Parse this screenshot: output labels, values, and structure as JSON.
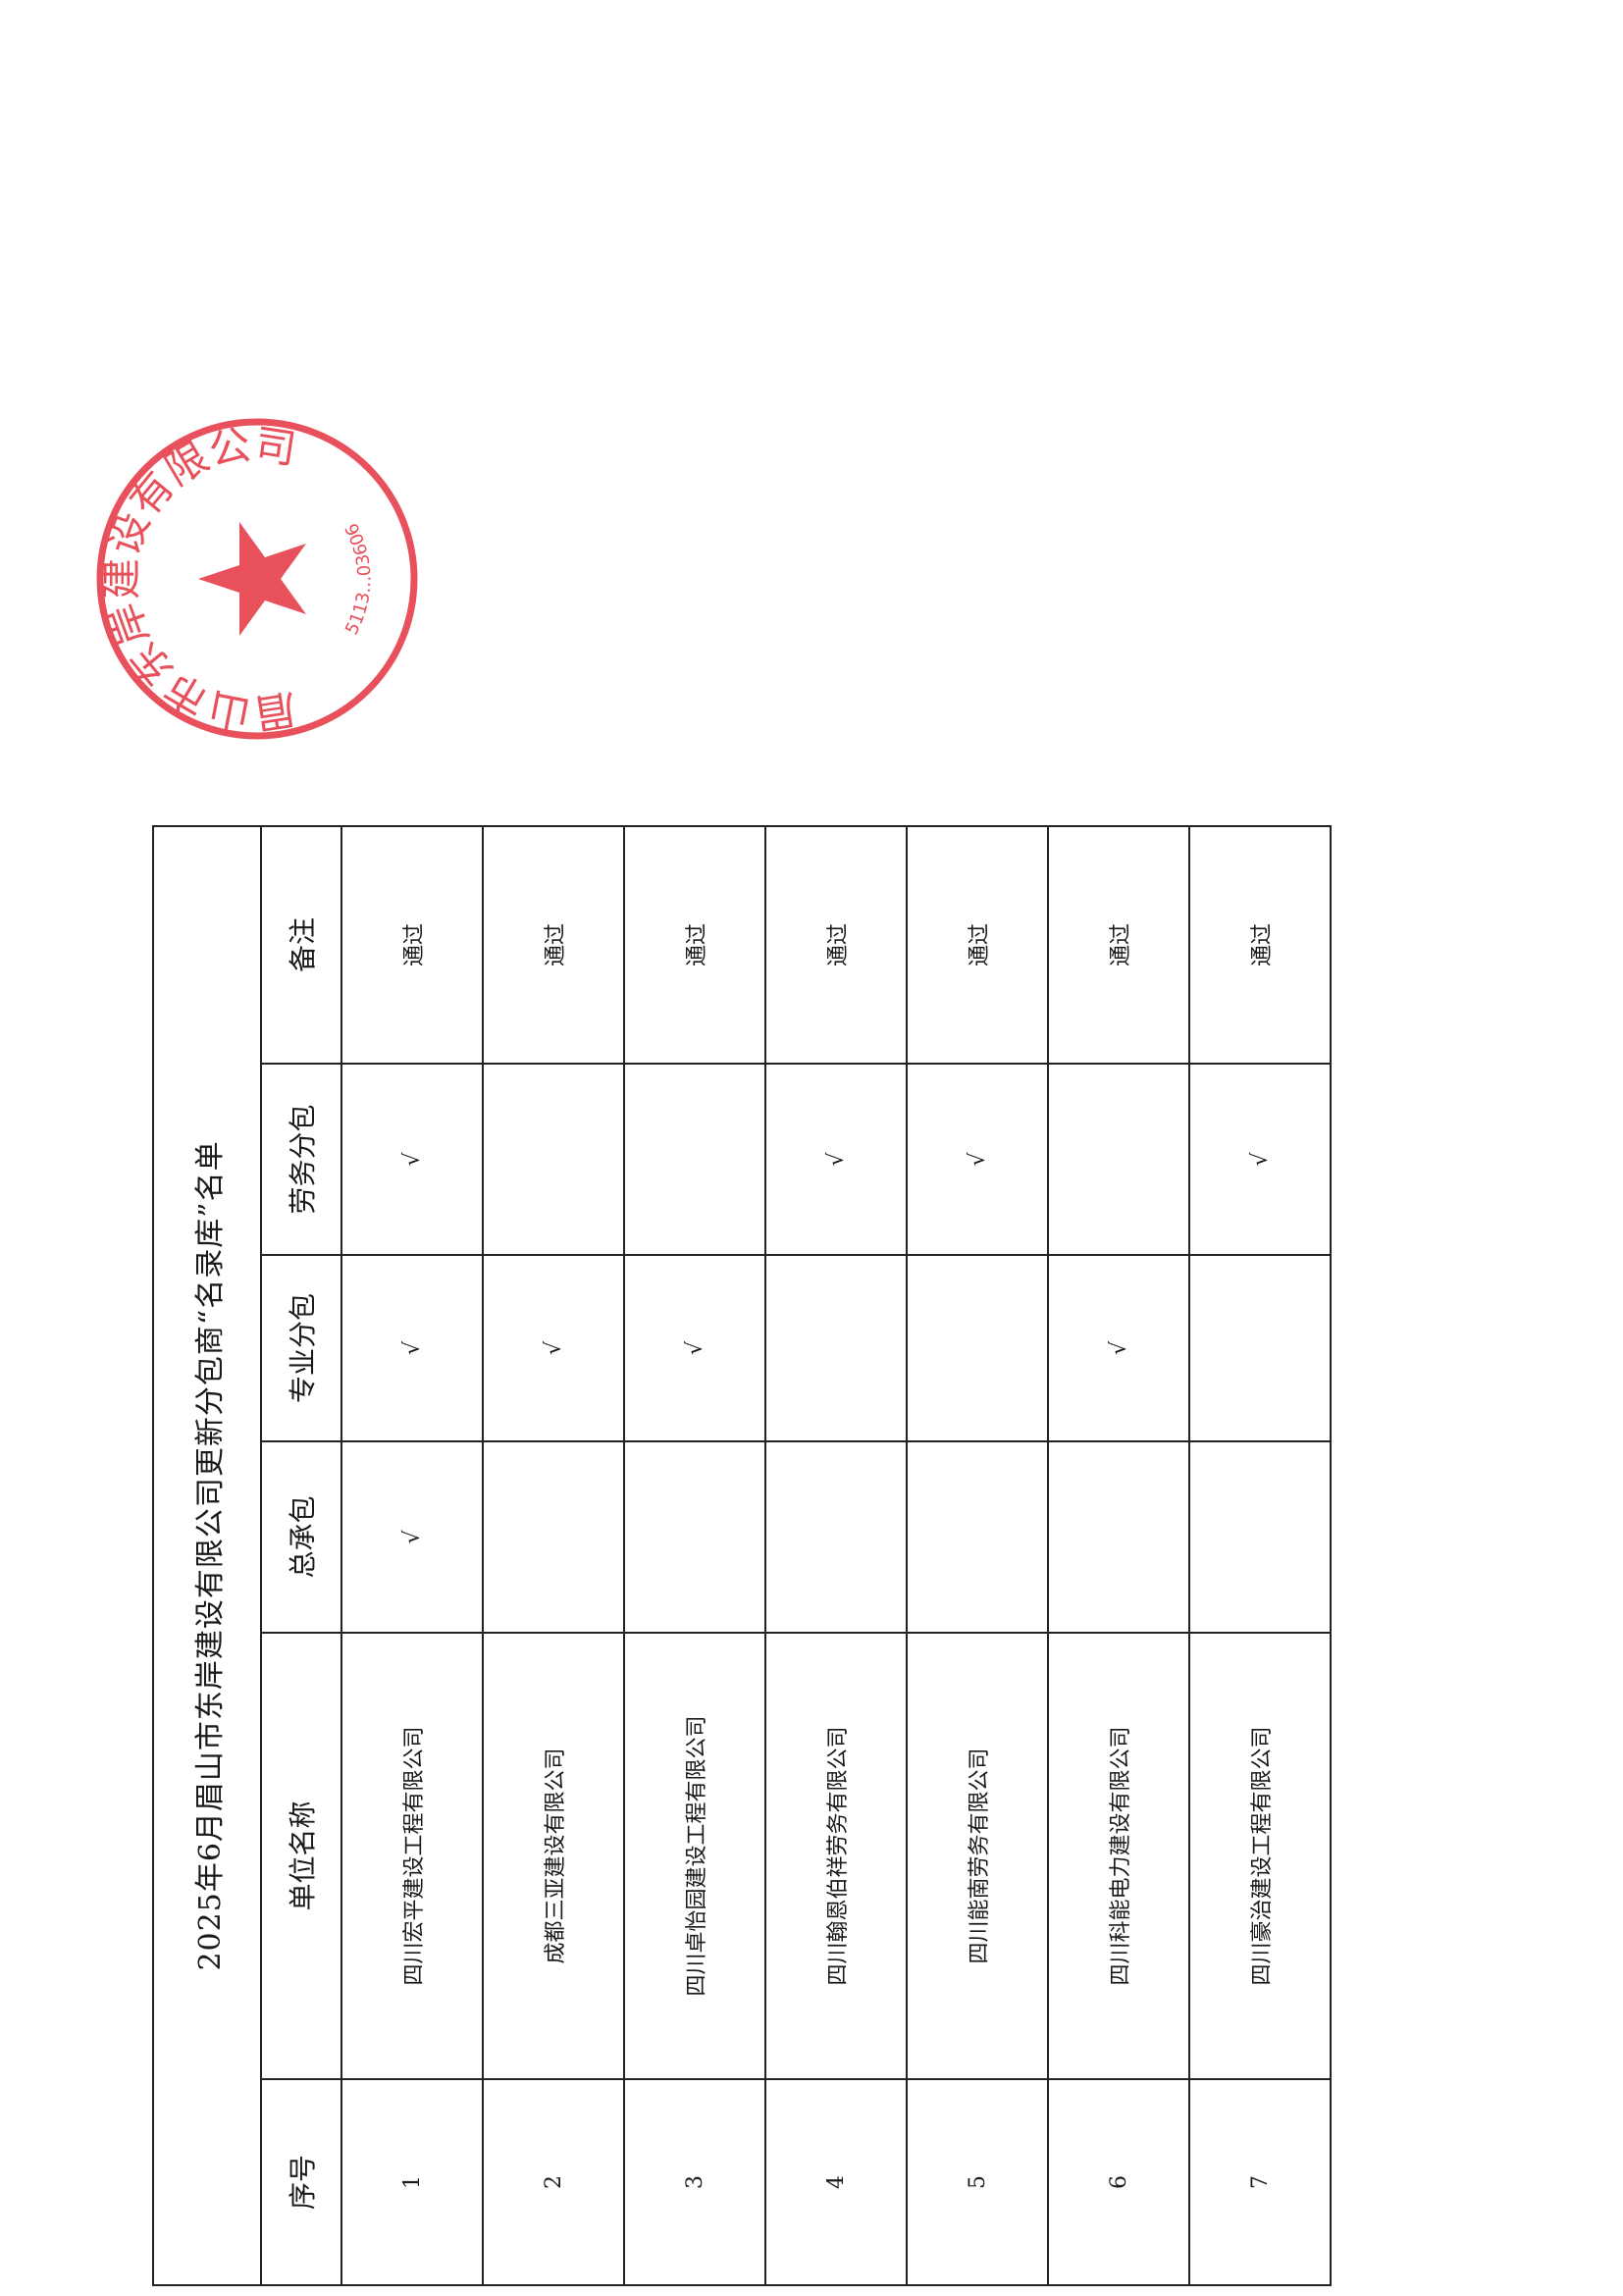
{
  "document": {
    "title": "2025年6月眉山市东岸建设有限公司更新分包商“名录库”名单",
    "headers": {
      "index": "序号",
      "company": "单位名称",
      "general": "总承包",
      "professional": "专业分包",
      "labor": "劳务分包",
      "remark": "备注"
    },
    "check_mark": "√",
    "rows": [
      {
        "index": "1",
        "company": "四川宏平建设工程有限公司",
        "general": true,
        "professional": true,
        "labor": true,
        "remark": "通过"
      },
      {
        "index": "2",
        "company": "成都三亚建设有限公司",
        "general": false,
        "professional": true,
        "labor": false,
        "remark": "通过"
      },
      {
        "index": "3",
        "company": "四川卓怡园建设工程有限公司",
        "general": false,
        "professional": true,
        "labor": false,
        "remark": "通过"
      },
      {
        "index": "4",
        "company": "四川翰恩伯祥劳务有限公司",
        "general": false,
        "professional": false,
        "labor": true,
        "remark": "通过"
      },
      {
        "index": "5",
        "company": "四川能南劳务有限公司",
        "general": false,
        "professional": false,
        "labor": true,
        "remark": "通过"
      },
      {
        "index": "6",
        "company": "四川科能电力建设有限公司",
        "general": false,
        "professional": true,
        "labor": false,
        "remark": "通过"
      },
      {
        "index": "7",
        "company": "四川豪治建设工程有限公司",
        "general": false,
        "professional": false,
        "labor": true,
        "remark": "通过"
      }
    ]
  },
  "stamp": {
    "text": "眉山市东岸建设有限公司",
    "number": "5113…03606",
    "color": "#e8505b"
  }
}
